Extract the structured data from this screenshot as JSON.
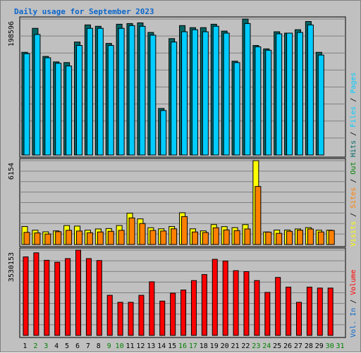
{
  "chart_data": {
    "type": "bar",
    "title": "Daily usage for September 2023",
    "categories": [
      "1",
      "2",
      "3",
      "4",
      "5",
      "6",
      "7",
      "8",
      "9",
      "10",
      "11",
      "12",
      "13",
      "14",
      "15",
      "16",
      "17",
      "18",
      "19",
      "20",
      "21",
      "22",
      "23",
      "24",
      "25",
      "26",
      "27",
      "28",
      "29",
      "30",
      "31"
    ],
    "weekend_days": [
      "2",
      "3",
      "9",
      "10",
      "16",
      "17",
      "23",
      "24",
      "30",
      "31"
    ],
    "colors": {
      "weekday_label": "#000000",
      "weekend_label": "#008000",
      "hits": "#006666",
      "files": "#00ccff",
      "pages": "#00ccff",
      "visits": "#ffff00",
      "sites": "#ff8000",
      "volume": "#ff0000"
    },
    "panels": [
      {
        "name": "hits-files",
        "ymax_label": "198596",
        "ymax": 198596,
        "legend": [
          {
            "text": "Hits",
            "color": "#006666"
          },
          {
            "text": " / ",
            "color": "#000000"
          },
          {
            "text": "Files",
            "color": "#00ccff"
          },
          {
            "text": " / ",
            "color": "#000000"
          },
          {
            "text": "Pages",
            "color": "#00ccff"
          }
        ],
        "series": [
          {
            "name": "Hits",
            "values": [
              150000,
              185000,
              144000,
              136000,
              135000,
              165000,
              190000,
              188000,
              163000,
              191000,
              192000,
              193000,
              179000,
              68000,
              170000,
              189000,
              186000,
              186000,
              191000,
              181000,
              137000,
              198596,
              160000,
              155000,
              180000,
              178000,
              183000,
              195000,
              150000,
              0,
              0
            ]
          },
          {
            "name": "Files",
            "values": [
              148000,
              176000,
              142000,
              134000,
              130000,
              160000,
              185000,
              185000,
              160000,
              185000,
              189000,
              188000,
              175000,
              65000,
              165000,
              180000,
              183000,
              180000,
              188000,
              178000,
              135000,
              192000,
              158000,
              153000,
              177000,
              178000,
              179000,
              190000,
              146000,
              0,
              0
            ]
          }
        ]
      },
      {
        "name": "visits-sites",
        "ymax_label": "6154",
        "ymax": 6154,
        "legend": [
          {
            "text": "Visits",
            "color": "#ffff00"
          },
          {
            "text": " / ",
            "color": "#000000"
          },
          {
            "text": "Sites",
            "color": "#ff8000"
          },
          {
            "text": " / ",
            "color": "#000000"
          },
          {
            "text": "Out",
            "color": "#008000"
          }
        ],
        "series": [
          {
            "name": "Visits",
            "values": [
              1320,
              1050,
              930,
              1000,
              1390,
              1350,
              1050,
              1140,
              1170,
              1390,
              2300,
              1880,
              1230,
              1150,
              1320,
              2330,
              1150,
              1000,
              1460,
              1310,
              1240,
              1460,
              6154,
              920,
              1060,
              1060,
              1140,
              1240,
              1050,
              1050,
              0
            ]
          },
          {
            "name": "Sites",
            "values": [
              890,
              850,
              770,
              940,
              1040,
              990,
              860,
              920,
              970,
              1040,
              1950,
              1540,
              1030,
              990,
              1150,
              2050,
              920,
              880,
              1230,
              1070,
              1020,
              1140,
              4260,
              910,
              820,
              970,
              1050,
              1140,
              920,
              1030,
              0
            ]
          }
        ]
      },
      {
        "name": "volume",
        "ymax_label": "3530153",
        "ymax": 3530153,
        "legend": [
          {
            "text": "Vol. In",
            "color": "#0a66cc"
          },
          {
            "text": " / ",
            "color": "#000000"
          },
          {
            "text": "Volume",
            "color": "#ff0000"
          }
        ],
        "series": [
          {
            "name": "Volume",
            "values": [
              3250000,
              3420000,
              3110000,
              3030000,
              3180000,
              3530153,
              3180000,
              3100000,
              1660000,
              1370000,
              1370000,
              1660000,
              2220000,
              1420000,
              1750000,
              1880000,
              2270000,
              2520000,
              3150000,
              3080000,
              2680000,
              2640000,
              2270000,
              1780000,
              2400000,
              2000000,
              1370000,
              2000000,
              1960000,
              1960000,
              0
            ]
          }
        ]
      }
    ]
  }
}
